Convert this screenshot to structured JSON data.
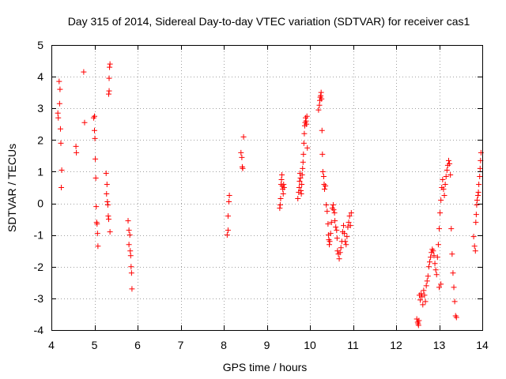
{
  "chart_data": {
    "type": "scatter",
    "title": "Day 315 of 2014, Sidereal Day-to-day VTEC variation (SDTVAR) for receiver cas1",
    "xlabel": "GPS time / hours",
    "ylabel": "SDTVAR / TECUs",
    "xlim": [
      4,
      14
    ],
    "ylim": [
      -4,
      5
    ],
    "xticks": [
      "4",
      "5",
      "6",
      "7",
      "8",
      "9",
      "10",
      "11",
      "12",
      "13",
      "14"
    ],
    "yticks": [
      "-4",
      "-3",
      "-2",
      "-1",
      "0",
      "1",
      "2",
      "3",
      "4",
      "5"
    ],
    "grid": true,
    "marker": "+",
    "color": "#ff0000",
    "series": [
      {
        "name": "SDTVAR",
        "points": [
          [
            4.15,
            2.85
          ],
          [
            4.16,
            2.7
          ],
          [
            4.18,
            3.85
          ],
          [
            4.2,
            3.6
          ],
          [
            4.19,
            3.15
          ],
          [
            4.21,
            2.35
          ],
          [
            4.22,
            1.9
          ],
          [
            4.24,
            1.05
          ],
          [
            4.23,
            0.5
          ],
          [
            4.57,
            1.8
          ],
          [
            4.58,
            1.6
          ],
          [
            4.75,
            4.15
          ],
          [
            4.77,
            2.55
          ],
          [
            4.98,
            2.7
          ],
          [
            5.0,
            2.75
          ],
          [
            5.0,
            2.3
          ],
          [
            5.01,
            2.05
          ],
          [
            5.02,
            1.4
          ],
          [
            5.03,
            0.8
          ],
          [
            5.04,
            -0.1
          ],
          [
            5.05,
            -0.6
          ],
          [
            5.06,
            -0.65
          ],
          [
            5.07,
            -0.95
          ],
          [
            5.08,
            -1.35
          ],
          [
            5.27,
            0.95
          ],
          [
            5.29,
            0.6
          ],
          [
            5.28,
            0.3
          ],
          [
            5.3,
            0.05
          ],
          [
            5.31,
            -0.05
          ],
          [
            5.32,
            -0.4
          ],
          [
            5.33,
            -0.5
          ],
          [
            5.33,
            3.45
          ],
          [
            5.34,
            3.55
          ],
          [
            5.34,
            3.95
          ],
          [
            5.35,
            4.3
          ],
          [
            5.36,
            4.4
          ],
          [
            5.36,
            -0.9
          ],
          [
            5.78,
            -0.55
          ],
          [
            5.8,
            -0.85
          ],
          [
            5.82,
            -1.0
          ],
          [
            5.8,
            -1.3
          ],
          [
            5.83,
            -1.5
          ],
          [
            5.84,
            -1.65
          ],
          [
            5.85,
            -2.0
          ],
          [
            5.86,
            -2.2
          ],
          [
            5.87,
            -2.7
          ],
          [
            8.08,
            -1.0
          ],
          [
            8.1,
            -0.85
          ],
          [
            8.1,
            -0.4
          ],
          [
            8.12,
            0.05
          ],
          [
            8.13,
            0.25
          ],
          [
            8.4,
            1.6
          ],
          [
            8.42,
            1.45
          ],
          [
            8.43,
            1.15
          ],
          [
            8.44,
            1.1
          ],
          [
            8.46,
            2.1
          ],
          [
            9.3,
            -0.15
          ],
          [
            9.31,
            -0.05
          ],
          [
            9.32,
            0.15
          ],
          [
            9.33,
            0.6
          ],
          [
            9.34,
            0.75
          ],
          [
            9.35,
            0.9
          ],
          [
            9.36,
            0.55
          ],
          [
            9.37,
            0.45
          ],
          [
            9.38,
            0.3
          ],
          [
            9.39,
            0.6
          ],
          [
            9.4,
            0.5
          ],
          [
            9.72,
            0.15
          ],
          [
            9.74,
            0.35
          ],
          [
            9.75,
            0.5
          ],
          [
            9.76,
            0.7
          ],
          [
            9.77,
            0.95
          ],
          [
            9.78,
            0.8
          ],
          [
            9.79,
            0.4
          ],
          [
            9.8,
            0.3
          ],
          [
            9.81,
            0.6
          ],
          [
            9.82,
            0.9
          ],
          [
            9.83,
            1.1
          ],
          [
            9.84,
            1.3
          ],
          [
            9.85,
            1.55
          ],
          [
            9.86,
            1.9
          ],
          [
            9.87,
            2.2
          ],
          [
            9.88,
            2.45
          ],
          [
            9.89,
            2.55
          ],
          [
            9.9,
            2.7
          ],
          [
            9.91,
            2.6
          ],
          [
            9.92,
            2.5
          ],
          [
            9.93,
            2.75
          ],
          [
            9.94,
            1.75
          ],
          [
            10.2,
            2.95
          ],
          [
            10.22,
            3.1
          ],
          [
            10.23,
            3.25
          ],
          [
            10.24,
            3.35
          ],
          [
            10.25,
            3.4
          ],
          [
            10.26,
            3.5
          ],
          [
            10.27,
            3.3
          ],
          [
            10.28,
            2.3
          ],
          [
            10.29,
            1.55
          ],
          [
            10.3,
            1.0
          ],
          [
            10.32,
            0.85
          ],
          [
            10.33,
            0.6
          ],
          [
            10.34,
            0.45
          ],
          [
            10.36,
            0.55
          ],
          [
            10.38,
            -0.05
          ],
          [
            10.4,
            -0.25
          ],
          [
            10.42,
            -0.65
          ],
          [
            10.43,
            -1.0
          ],
          [
            10.44,
            -1.15
          ],
          [
            10.45,
            -1.3
          ],
          [
            10.46,
            -1.2
          ],
          [
            10.48,
            -0.95
          ],
          [
            10.5,
            -0.6
          ],
          [
            10.52,
            -0.15
          ],
          [
            10.54,
            -0.05
          ],
          [
            10.55,
            -0.2
          ],
          [
            10.57,
            -0.3
          ],
          [
            10.58,
            -0.55
          ],
          [
            10.6,
            -0.75
          ],
          [
            10.62,
            -0.85
          ],
          [
            10.63,
            -1.1
          ],
          [
            10.64,
            -1.5
          ],
          [
            10.66,
            -1.6
          ],
          [
            10.68,
            -1.75
          ],
          [
            10.7,
            -1.55
          ],
          [
            10.72,
            -1.4
          ],
          [
            10.74,
            -1.2
          ],
          [
            10.76,
            -0.9
          ],
          [
            10.78,
            -0.7
          ],
          [
            10.8,
            -0.95
          ],
          [
            10.82,
            -1.2
          ],
          [
            10.84,
            -1.3
          ],
          [
            10.86,
            -1.05
          ],
          [
            10.88,
            -0.75
          ],
          [
            10.9,
            -0.6
          ],
          [
            10.92,
            -0.4
          ],
          [
            10.94,
            -0.7
          ],
          [
            10.96,
            -0.3
          ],
          [
            12.48,
            -3.65
          ],
          [
            12.5,
            -3.75
          ],
          [
            12.51,
            -3.8
          ],
          [
            12.52,
            -3.85
          ],
          [
            12.53,
            -3.7
          ],
          [
            12.54,
            -2.9
          ],
          [
            12.56,
            -3.05
          ],
          [
            12.58,
            -2.85
          ],
          [
            12.6,
            -2.95
          ],
          [
            12.62,
            -3.2
          ],
          [
            12.64,
            -2.75
          ],
          [
            12.66,
            -2.9
          ],
          [
            12.68,
            -3.1
          ],
          [
            12.7,
            -2.6
          ],
          [
            12.72,
            -2.45
          ],
          [
            12.74,
            -2.3
          ],
          [
            12.76,
            -2.0
          ],
          [
            12.78,
            -1.85
          ],
          [
            12.8,
            -1.7
          ],
          [
            12.82,
            -1.55
          ],
          [
            12.84,
            -1.45
          ],
          [
            12.86,
            -1.5
          ],
          [
            12.88,
            -1.65
          ],
          [
            12.9,
            -1.9
          ],
          [
            12.92,
            -2.1
          ],
          [
            12.94,
            -2.25
          ],
          [
            12.96,
            -1.7
          ],
          [
            12.98,
            -1.3
          ],
          [
            13.0,
            -0.8
          ],
          [
            13.02,
            -0.3
          ],
          [
            13.04,
            0.1
          ],
          [
            13.06,
            0.5
          ],
          [
            13.08,
            0.75
          ],
          [
            13.1,
            0.45
          ],
          [
            13.12,
            0.25
          ],
          [
            13.14,
            0.6
          ],
          [
            13.16,
            0.85
          ],
          [
            13.18,
            1.05
          ],
          [
            13.2,
            1.2
          ],
          [
            13.22,
            1.35
          ],
          [
            13.24,
            1.25
          ],
          [
            13.26,
            0.9
          ],
          [
            13.28,
            -0.8
          ],
          [
            13.3,
            -1.6
          ],
          [
            13.32,
            -2.2
          ],
          [
            13.34,
            -2.65
          ],
          [
            13.36,
            -3.1
          ],
          [
            13.38,
            -3.55
          ],
          [
            13.4,
            -3.6
          ],
          [
            13.04,
            -2.55
          ],
          [
            13.0,
            -2.65
          ],
          [
            13.8,
            -1.05
          ],
          [
            13.82,
            -1.35
          ],
          [
            13.84,
            -1.5
          ],
          [
            13.85,
            -0.6
          ],
          [
            13.86,
            -0.35
          ],
          [
            13.87,
            -0.05
          ],
          [
            13.88,
            0.1
          ],
          [
            13.9,
            0.25
          ],
          [
            13.91,
            0.35
          ],
          [
            13.92,
            0.6
          ],
          [
            13.94,
            0.85
          ],
          [
            13.95,
            1.1
          ],
          [
            13.96,
            1.35
          ],
          [
            13.97,
            1.6
          ]
        ]
      }
    ]
  }
}
